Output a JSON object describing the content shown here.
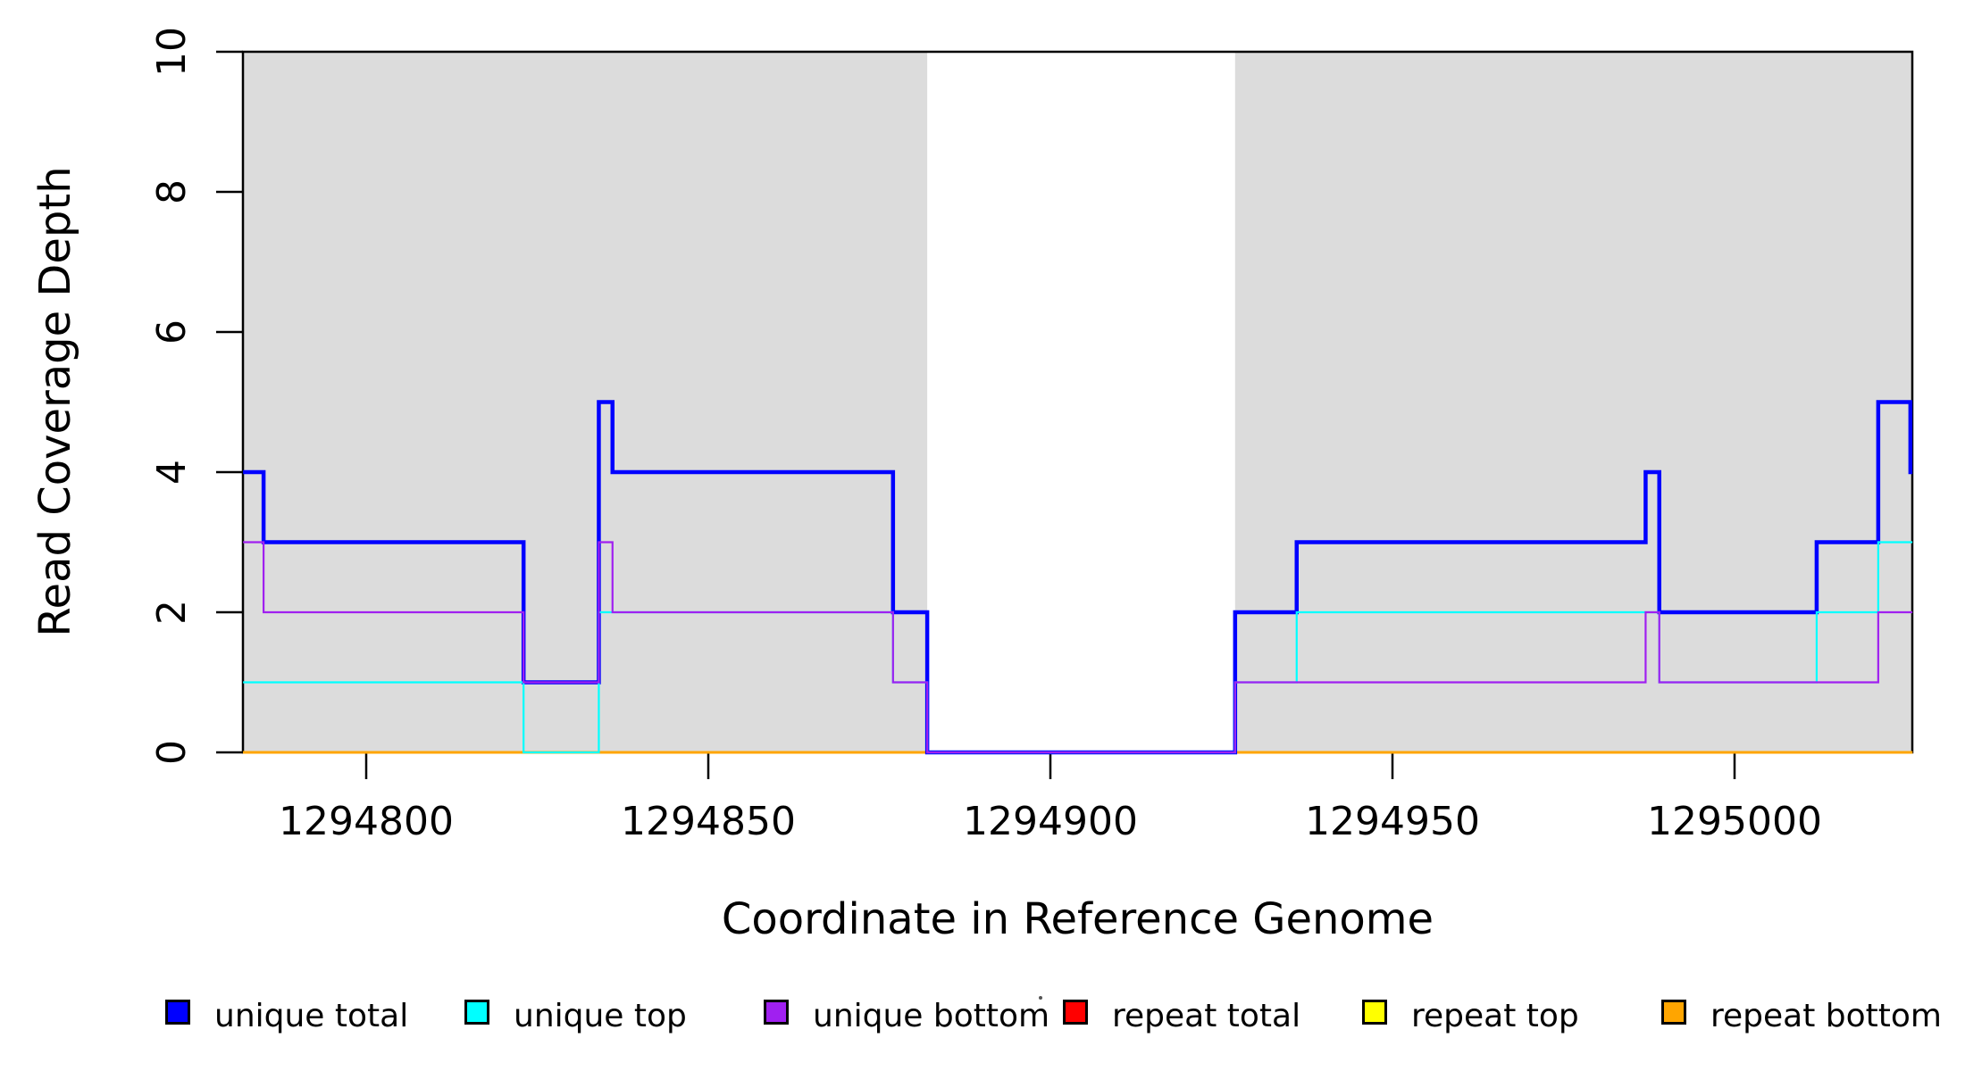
{
  "page": {
    "background": "#FFFFFF",
    "axis_color": "#000000"
  },
  "chart_data": {
    "type": "line",
    "subtype": "step-coverage",
    "title": "",
    "xlabel": "Coordinate in Reference Genome",
    "ylabel": "Read Coverage Depth",
    "x_ticks": [
      1294800,
      1294850,
      1294900,
      1294950,
      1295000
    ],
    "x_tick_labels": [
      "1294800",
      "1294850",
      "1294900",
      "1294950",
      "1295000"
    ],
    "y_ticks": [
      0,
      2,
      4,
      6,
      8,
      10
    ],
    "y_tick_labels": [
      "0",
      "2",
      "4",
      "6",
      "8",
      "10"
    ],
    "xlim": [
      1294782,
      1295026
    ],
    "ylim": [
      0,
      10
    ],
    "grid": false,
    "shade_color": "#DCDCDC",
    "shaded_regions": [
      {
        "name": "annotated-region-left",
        "from": 1294782,
        "to": 1294882
      },
      {
        "name": "annotated-region-right",
        "from": 1294927,
        "to": 1295026
      }
    ],
    "series": [
      {
        "name": "repeat total",
        "color": "#FF0000",
        "line_width": 2.5,
        "steps": [
          [
            1294782,
            0
          ]
        ]
      },
      {
        "name": "repeat top",
        "color": "#FFFF00",
        "line_width": 2.5,
        "steps": [
          [
            1294782,
            0
          ]
        ]
      },
      {
        "name": "repeat bottom",
        "color": "#FFA500",
        "line_width": 3,
        "steps": [
          [
            1294782,
            0
          ]
        ]
      },
      {
        "name": "unique total",
        "color": "#0000FF",
        "line_width": 4.5,
        "steps": [
          [
            1294782,
            4
          ],
          [
            1294785,
            3
          ],
          [
            1294823,
            1
          ],
          [
            1294834,
            5
          ],
          [
            1294836,
            4
          ],
          [
            1294877,
            2
          ],
          [
            1294882,
            0
          ],
          [
            1294927,
            2
          ],
          [
            1294936,
            3
          ],
          [
            1294987,
            4
          ],
          [
            1294989,
            2
          ],
          [
            1295012,
            3
          ],
          [
            1295021,
            5
          ],
          [
            1295025.7,
            4
          ]
        ]
      },
      {
        "name": "unique top",
        "color": "#00FFFF",
        "line_width": 2.2,
        "steps": [
          [
            1294782,
            1
          ],
          [
            1294823,
            0
          ],
          [
            1294834,
            2
          ],
          [
            1294877,
            1
          ],
          [
            1294882,
            0
          ],
          [
            1294927,
            1
          ],
          [
            1294936,
            2
          ],
          [
            1294989,
            1
          ],
          [
            1295012,
            2
          ],
          [
            1295021,
            3
          ]
        ]
      },
      {
        "name": "unique bottom",
        "color": "#A020F0",
        "line_width": 2.2,
        "steps": [
          [
            1294782,
            3
          ],
          [
            1294785,
            2
          ],
          [
            1294823,
            1
          ],
          [
            1294834,
            3
          ],
          [
            1294836,
            2
          ],
          [
            1294877,
            1
          ],
          [
            1294882,
            0
          ],
          [
            1294927,
            1
          ],
          [
            1294987,
            2
          ],
          [
            1294989,
            1
          ],
          [
            1295021,
            2
          ]
        ]
      }
    ],
    "legend": {
      "position": "bottom",
      "items": [
        {
          "label": "unique total",
          "color": "#0000FF"
        },
        {
          "label": "unique top",
          "color": "#00FFFF"
        },
        {
          "label": "unique bottom",
          "color": "#A020F0"
        },
        {
          "label": "repeat total",
          "color": "#FF0000"
        },
        {
          "label": "repeat top",
          "color": "#FFFF00"
        },
        {
          "label": "repeat bottom",
          "color": "#FFA500"
        }
      ]
    }
  }
}
